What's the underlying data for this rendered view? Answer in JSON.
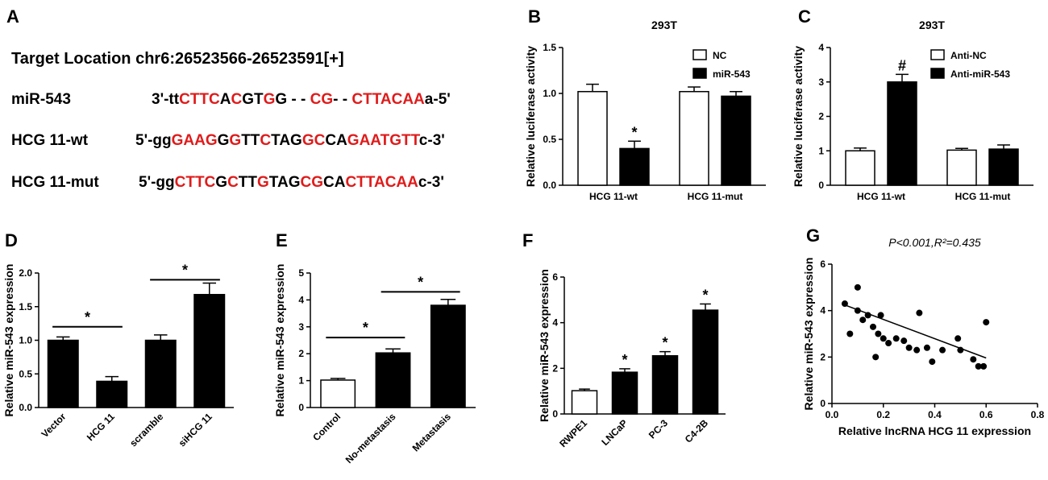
{
  "panel_a": {
    "letter": "A",
    "target_location": "Target Location chr6:26523566-26523591[+]",
    "rows": [
      {
        "label": "miR-543",
        "segments": [
          [
            "3'-tt",
            "k"
          ],
          [
            "CTTC",
            "r"
          ],
          [
            "A",
            "k"
          ],
          [
            "C",
            "r"
          ],
          [
            "GT",
            "k"
          ],
          [
            "G",
            "r"
          ],
          [
            "G - - ",
            "k"
          ],
          [
            "CG",
            "r"
          ],
          [
            "- - ",
            "k"
          ],
          [
            "CTTACAA",
            "r"
          ],
          [
            "a-5'",
            "k"
          ]
        ]
      },
      {
        "label": "HCG 11-wt",
        "segments": [
          [
            "5'-gg",
            "k"
          ],
          [
            "GAAG",
            "r"
          ],
          [
            "G",
            "k"
          ],
          [
            "G",
            "r"
          ],
          [
            "TT",
            "k"
          ],
          [
            "C",
            "r"
          ],
          [
            "TAG",
            "k"
          ],
          [
            "GC",
            "r"
          ],
          [
            "CA",
            "k"
          ],
          [
            "GAATGTT",
            "r"
          ],
          [
            "c-3'",
            "k"
          ]
        ]
      },
      {
        "label": "HCG 11-mut",
        "segments": [
          [
            "5'-gg",
            "k"
          ],
          [
            "CTTC",
            "r"
          ],
          [
            "G",
            "k"
          ],
          [
            "C",
            "r"
          ],
          [
            "TT",
            "k"
          ],
          [
            "G",
            "r"
          ],
          [
            "TAG",
            "k"
          ],
          [
            "CG",
            "r"
          ],
          [
            "CA",
            "k"
          ],
          [
            "CTTACAA",
            "r"
          ],
          [
            "c-3'",
            "k"
          ]
        ]
      }
    ]
  },
  "colors": {
    "sequence_highlight": "#e01b1b",
    "bar_fill": "#000000",
    "open_bar": "#ffffff"
  },
  "chart_data": [
    {
      "panel": "B",
      "type": "bar",
      "title": "293T",
      "xlabel": "",
      "ylabel": "Relative luciferase activity",
      "ylim": [
        0,
        1.5
      ],
      "yticks": [
        "0.0",
        "0.5",
        "1.0",
        "1.5"
      ],
      "categories": [
        "HCG 11-wt",
        "HCG 11-mut"
      ],
      "legend_position": "top-right",
      "series": [
        {
          "name": "NC",
          "fill": "white",
          "values": [
            1.02,
            1.02
          ],
          "errors": [
            0.08,
            0.05
          ],
          "marks": [
            "",
            ""
          ]
        },
        {
          "name": "miR-543",
          "fill": "black",
          "values": [
            0.4,
            0.97
          ],
          "errors": [
            0.08,
            0.05
          ],
          "marks": [
            "*",
            ""
          ]
        }
      ]
    },
    {
      "panel": "C",
      "type": "bar",
      "title": "293T",
      "xlabel": "",
      "ylabel": "Relative luciferase activity",
      "ylim": [
        0,
        4
      ],
      "yticks": [
        "0",
        "1",
        "2",
        "3",
        "4"
      ],
      "categories": [
        "HCG 11-wt",
        "HCG 11-mut"
      ],
      "legend_position": "top-right",
      "series": [
        {
          "name": "Anti-NC",
          "fill": "white",
          "values": [
            1.0,
            1.02
          ],
          "errors": [
            0.08,
            0.05
          ],
          "marks": [
            "",
            ""
          ]
        },
        {
          "name": "Anti-miR-543",
          "fill": "black",
          "values": [
            3.0,
            1.05
          ],
          "errors": [
            0.22,
            0.12
          ],
          "marks": [
            "#",
            ""
          ]
        }
      ]
    },
    {
      "panel": "D",
      "type": "bar",
      "xlabel": "",
      "ylabel": "Relative miR-543 expression",
      "ylim": [
        0,
        2.0
      ],
      "yticks": [
        "0.0",
        "0.5",
        "1.0",
        "1.5",
        "2.0"
      ],
      "categories": [
        "Vector",
        "HCG 11",
        "scramble",
        "siHCG 11"
      ],
      "values": [
        1.0,
        0.39,
        1.0,
        1.68
      ],
      "errors": [
        0.05,
        0.07,
        0.08,
        0.17
      ],
      "fills": [
        "black",
        "black",
        "black",
        "black"
      ],
      "significance": [
        {
          "from": 0,
          "to": 1,
          "level": 1.2,
          "label": "*"
        },
        {
          "from": 2,
          "to": 3,
          "level": 1.9,
          "label": "*"
        }
      ]
    },
    {
      "panel": "E",
      "type": "bar",
      "xlabel": "",
      "ylabel": "Relative miR-543 expression",
      "ylim": [
        0,
        5
      ],
      "yticks": [
        "0",
        "1",
        "2",
        "3",
        "4",
        "5"
      ],
      "categories": [
        "Control",
        "No-metastasis",
        "Metastasis"
      ],
      "values": [
        1.02,
        2.03,
        3.8
      ],
      "errors": [
        0.06,
        0.15,
        0.22
      ],
      "fills": [
        "white",
        "black",
        "black"
      ],
      "significance": [
        {
          "from": 0,
          "to": 1,
          "level": 2.6,
          "label": "*"
        },
        {
          "from": 1,
          "to": 2,
          "level": 4.3,
          "label": "*"
        }
      ]
    },
    {
      "panel": "F",
      "type": "bar",
      "xlabel": "",
      "ylabel": "Relative miR-543 expression",
      "ylim": [
        0,
        6
      ],
      "yticks": [
        "0",
        "2",
        "4",
        "6"
      ],
      "categories": [
        "RWPE1",
        "LNCaP",
        "PC-3",
        "C4-2B"
      ],
      "values": [
        1.02,
        1.83,
        2.55,
        4.55
      ],
      "errors": [
        0.07,
        0.15,
        0.18,
        0.27
      ],
      "fills": [
        "white",
        "black",
        "black",
        "black"
      ],
      "marks": [
        "",
        "*",
        "*",
        "*"
      ]
    },
    {
      "panel": "G",
      "type": "scatter",
      "title": "P<0.001,R²=0.435",
      "xlabel": "Relative lncRNA HCG 11 expression",
      "ylabel": "Relative miR-543 expression",
      "xlim": [
        0,
        0.8
      ],
      "ylim": [
        0,
        6
      ],
      "xticks": [
        "0.0",
        "0.2",
        "0.4",
        "0.6",
        "0.8"
      ],
      "yticks": [
        "0",
        "2",
        "4",
        "6"
      ],
      "points": [
        [
          0.05,
          4.3
        ],
        [
          0.07,
          3.0
        ],
        [
          0.1,
          5.0
        ],
        [
          0.1,
          4.0
        ],
        [
          0.12,
          3.6
        ],
        [
          0.14,
          3.8
        ],
        [
          0.16,
          3.3
        ],
        [
          0.17,
          2.0
        ],
        [
          0.18,
          3.0
        ],
        [
          0.19,
          3.8
        ],
        [
          0.2,
          2.8
        ],
        [
          0.22,
          2.6
        ],
        [
          0.25,
          2.8
        ],
        [
          0.28,
          2.7
        ],
        [
          0.3,
          2.4
        ],
        [
          0.33,
          2.3
        ],
        [
          0.34,
          3.9
        ],
        [
          0.37,
          2.4
        ],
        [
          0.39,
          1.8
        ],
        [
          0.43,
          2.3
        ],
        [
          0.49,
          2.8
        ],
        [
          0.5,
          2.3
        ],
        [
          0.55,
          1.9
        ],
        [
          0.57,
          1.6
        ],
        [
          0.59,
          1.6
        ],
        [
          0.6,
          3.5
        ]
      ],
      "fit": {
        "slope": -4.15,
        "intercept": 4.45
      }
    }
  ]
}
